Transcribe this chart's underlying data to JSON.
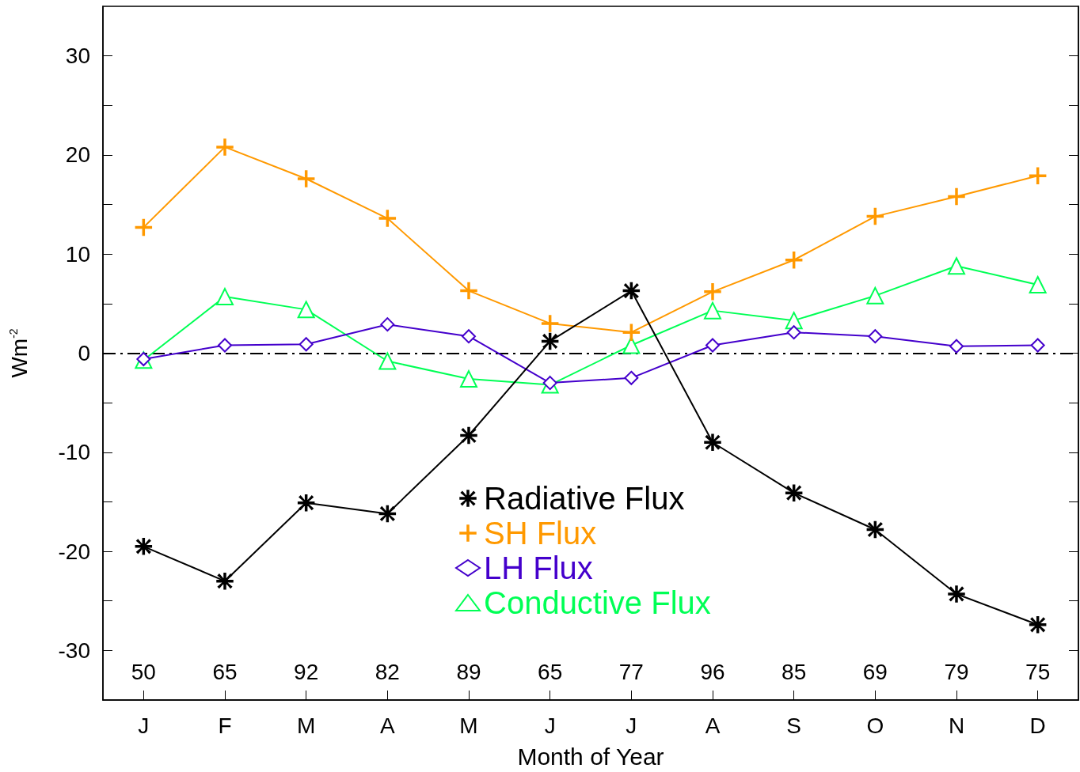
{
  "chart_data": {
    "type": "line",
    "xlabel": "Month of Year",
    "ylabel": "Wm$^{-2}$",
    "categories": [
      "J",
      "F",
      "M",
      "A",
      "M",
      "J",
      "J",
      "A",
      "S",
      "O",
      "N",
      "D"
    ],
    "series": [
      {
        "name": "Radiative Flux",
        "color": "#000000",
        "marker": "star",
        "values": [
          -19.5,
          -23.0,
          -15.1,
          -16.2,
          -8.3,
          1.2,
          6.3,
          -9.0,
          -14.1,
          -17.8,
          -24.3,
          -27.4
        ]
      },
      {
        "name": "SH Flux",
        "color": "#ff9900",
        "marker": "cross",
        "values": [
          12.7,
          20.8,
          17.6,
          13.6,
          6.3,
          3.0,
          2.1,
          6.2,
          9.4,
          13.8,
          15.8,
          17.9
        ]
      },
      {
        "name": "LH Flux",
        "color": "#4400cc",
        "marker": "diamond",
        "values": [
          -0.6,
          0.8,
          0.9,
          2.9,
          1.7,
          -3.0,
          -2.5,
          0.8,
          2.1,
          1.7,
          0.7,
          0.8
        ]
      },
      {
        "name": "Conductive Flux",
        "color": "#00ff55",
        "marker": "triangle",
        "values": [
          -0.7,
          5.7,
          4.4,
          -0.8,
          -2.6,
          -3.2,
          0.8,
          4.3,
          3.3,
          5.8,
          8.8,
          6.9
        ]
      }
    ],
    "ylim": [
      -35,
      35
    ],
    "yticks": [
      -30,
      {
        "value": -25,
        "label": null
      },
      -20,
      {
        "value": -15,
        "label": null
      },
      -10,
      {
        "value": -5,
        "label": null
      },
      0,
      {
        "value": 5,
        "label": null
      },
      10,
      {
        "value": 15,
        "label": null
      },
      20,
      {
        "value": 25,
        "label": null
      },
      30
    ],
    "ref_lines": [
      {
        "axis": "y",
        "value": 0,
        "color": "#000000",
        "line_style": "dashed"
      }
    ],
    "annotations": [
      "50",
      "65",
      "92",
      "82",
      "89",
      "65",
      "77",
      "96",
      "85",
      "69",
      "79",
      "75"
    ],
    "legend": "bottom",
    "grid": false
  }
}
